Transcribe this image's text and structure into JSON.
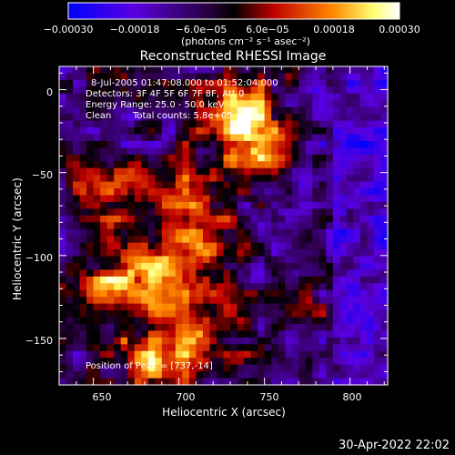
{
  "chart_data": {
    "type": "heatmap",
    "title": "Reconstructed RHESSI Image",
    "xlabel": "Heliocentric X (arcsec)",
    "ylabel": "Heliocentric Y (arcsec)",
    "xlim": [
      630,
      822
    ],
    "ylim": [
      -178,
      14
    ],
    "x_ticks": [
      "650",
      "700",
      "750",
      "800"
    ],
    "y_ticks": [
      "0",
      "−50",
      "−100",
      "−150"
    ],
    "colorbar": {
      "range": [
        -0.0003,
        0.0003
      ],
      "ticks": [
        "−0.00030",
        "−0.00018",
        "−6.0e−05",
        "6.0e−05",
        "0.00018",
        "0.00030"
      ],
      "units": "(photons cm⁻² s⁻¹ asec⁻²)",
      "colors": [
        "#0000ff",
        "#7a00c8",
        "#000000",
        "#c80000",
        "#ff8c00",
        "#ffff66",
        "#ffffff"
      ]
    },
    "annotations": {
      "time_range": "8-Jul-2005 01:47:08.000 to 01:52:04.000",
      "detectors": "Detectors: 3F 4F 5F 6F 7F 8F, Att 0",
      "energy_range": "Energy Range: 25.0 - 50.0 keV",
      "method": "Clean",
      "total_counts": "Total counts: 5.8e+05",
      "peak_position": "Position of Peak = [737,-14]"
    },
    "peak": {
      "x": 737,
      "y": -14
    }
  },
  "footer": {
    "timestamp": "30-Apr-2022 22:02"
  }
}
